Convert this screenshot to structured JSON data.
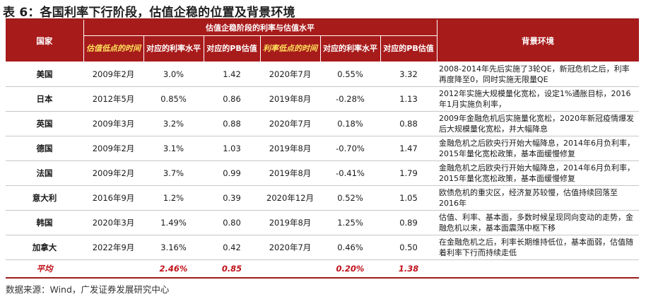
{
  "title": "表 6：各国利率下行阶段，估值企稳的位置及背景环境",
  "header": {
    "country": "国家",
    "group": "估值企稳阶段的利率与估值水平",
    "val_bottom": "估值低点的时间",
    "rate_at_val": "对应的利率水平",
    "pb_at_val": "对应的PB估值",
    "rate_bottom": "利率低点的时间",
    "rate_at_rate": "对应的利率水平",
    "pb_at_rate": "对应的PB估值",
    "background": "背景环境"
  },
  "rows": [
    {
      "country": "美国",
      "val_date": "2009年2月",
      "rate1": "3.0%",
      "pb1": "1.42",
      "rate_date": "2020年7月",
      "rate2": "0.55%",
      "pb2": "3.32",
      "bg": "2008-2014年先后实施了3轮QE，新冠危机之后，利率再度降至0，同时实施无限量QE"
    },
    {
      "country": "日本",
      "val_date": "2012年5月",
      "rate1": "0.85%",
      "pb1": "0.86",
      "rate_date": "2019年8月",
      "rate2": "-0.28%",
      "pb2": "1.13",
      "bg": "2012年实施大规模量化宽松，设定1%通胀目标，2016年1月实施负利率，"
    },
    {
      "country": "英国",
      "val_date": "2009年3月",
      "rate1": "3.2%",
      "pb1": "0.88",
      "rate_date": "2020年7月",
      "rate2": "0.18%",
      "pb2": "0.88",
      "bg": "2009年金融危机后实施量化宽松，2020年新冠疫情爆发后大规模量化宽松，并大幅降息"
    },
    {
      "country": "德国",
      "val_date": "2009年2月",
      "rate1": "3.1%",
      "pb1": "1.03",
      "rate_date": "2019年8月",
      "rate2": "-0.70%",
      "pb2": "1.47",
      "bg": "金融危机之后欧央行开始大幅降息，2014年6月负利率，2015年量化宽松政策，基本面缓慢修复"
    },
    {
      "country": "法国",
      "val_date": "2009年2月",
      "rate1": "3.7%",
      "pb1": "0.99",
      "rate_date": "2019年8月",
      "rate2": "-0.41%",
      "pb2": "1.79",
      "bg": "金融危机之后欧央行开始大幅降息，2014年6月负利率，2015年量化宽松政策，基本面缓慢修复"
    },
    {
      "country": "意大利",
      "val_date": "2016年9月",
      "rate1": "1.2%",
      "pb1": "0.39",
      "rate_date": "2020年12月",
      "rate2": "0.52%",
      "pb2": "1.05",
      "bg": "欧债危机的重灾区，经济复苏较慢，估值持续回落至2016年"
    },
    {
      "country": "韩国",
      "val_date": "2020年3月",
      "rate1": "1.49%",
      "pb1": "0.80",
      "rate_date": "2019年8月",
      "rate2": "1.25%",
      "pb2": "0.89",
      "bg": "估值、利率、基本面，多数时候呈现同向变动的走势，金融危机以来，基本面震荡中枢下移"
    },
    {
      "country": "加拿大",
      "val_date": "2022年9月",
      "rate1": "3.16%",
      "pb1": "0.42",
      "rate_date": "2020年7月",
      "rate2": "0.46%",
      "pb2": "0.50",
      "bg": "在金融危机之后，利率长期维持低位，基本面弱，估值随着利率下行而持续走低"
    }
  ],
  "average": {
    "label": "平均",
    "rate1": "2.46%",
    "pb1": "0.85",
    "rate2": "0.20%",
    "pb2": "1.38"
  },
  "source": "数据来源：Wind，广发证券发展研究中心",
  "colors": {
    "header_bg": "#a81b1b",
    "accent_red": "#c0121a",
    "rule": "#9b1c1c"
  }
}
